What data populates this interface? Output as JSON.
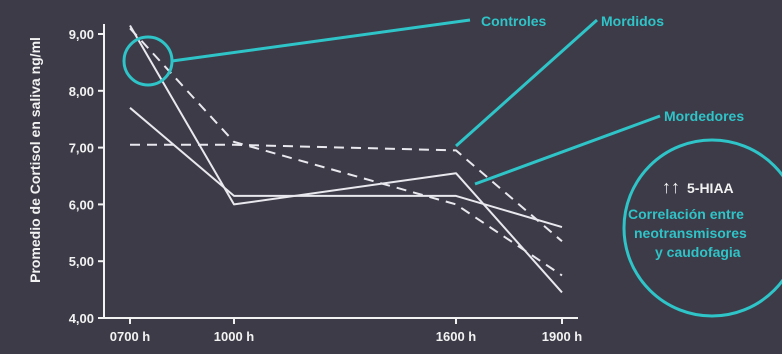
{
  "colors": {
    "background": "#3d3b47",
    "line": "#e8e8ee",
    "axis": "#f2f2f2",
    "accent": "#2ec4c8",
    "text": "#f2f2f2"
  },
  "chart_data": {
    "type": "line",
    "ylabel": "Promedio de Cortisol en saliva ng/ml",
    "categories": [
      "0700 h",
      "1000 h",
      "1600 h",
      "1900 h"
    ],
    "ylim": [
      4.0,
      9.0
    ],
    "yticks": [
      "4,00",
      "5,00",
      "6,00",
      "7,00",
      "8,00",
      "9,00"
    ],
    "grid": false,
    "series": [
      {
        "style": "solid",
        "values": [
          9.15,
          6.0,
          6.55,
          4.45
        ]
      },
      {
        "style": "solid",
        "values": [
          7.7,
          6.15,
          6.15,
          5.6
        ]
      },
      {
        "style": "dashed",
        "values": [
          9.1,
          7.1,
          6.0,
          4.75
        ]
      },
      {
        "style": "dashed",
        "values": [
          7.05,
          7.05,
          6.95,
          5.35
        ]
      }
    ],
    "annotations": {
      "controles": "Controles",
      "mordidos": "Mordidos",
      "mordedores": "Mordedores"
    },
    "callout": {
      "arrows": "↑↑",
      "line1": "5-HIAA",
      "line2": "Correlación entre",
      "line3": "neotransmisores",
      "line4": "y caudofagia"
    }
  }
}
